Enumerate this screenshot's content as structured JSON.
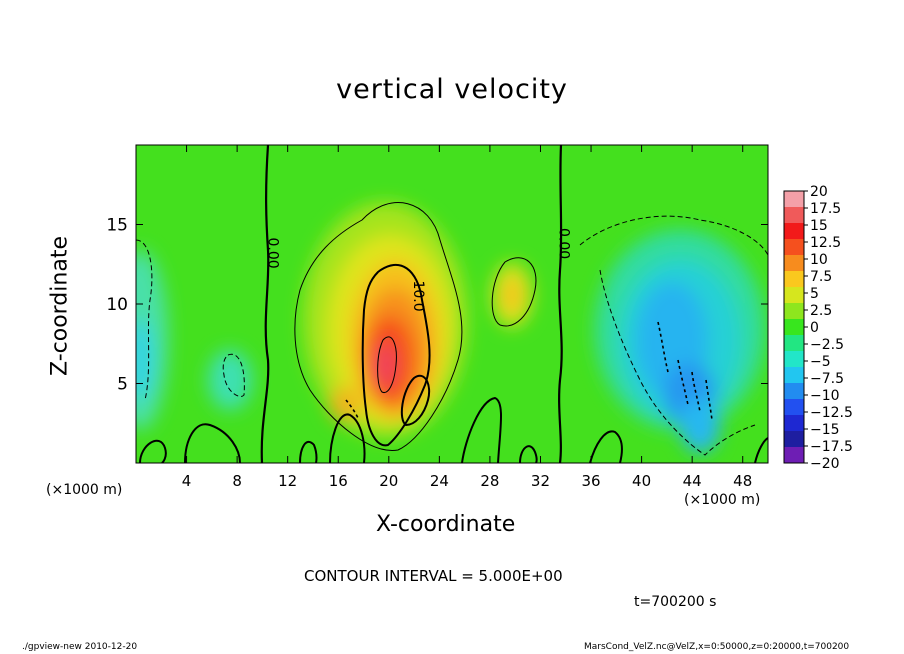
{
  "chart_data": {
    "type": "heatmap",
    "title": "vertical velocity",
    "xlabel": "X-coordinate",
    "ylabel": "Z-coordinate",
    "x_unit_left": "(×1000 m)",
    "x_unit_right": "(×1000 m)",
    "xlim": [
      0,
      50
    ],
    "ylim": [
      0,
      20
    ],
    "x_ticks": [
      4,
      8,
      12,
      16,
      20,
      24,
      28,
      32,
      36,
      40,
      44,
      48
    ],
    "y_ticks": [
      5,
      10,
      15
    ],
    "colorbar": {
      "labels": [
        "20",
        "17.5",
        "15",
        "12.5",
        "10",
        "7.5",
        "5",
        "2.5",
        "0",
        "-2.5",
        "-5",
        "-7.5",
        "-10",
        "-12.5",
        "-15",
        "-17.5",
        "-20"
      ],
      "range": [
        -20,
        20
      ],
      "colors": [
        "#f4a0a8",
        "#f05a5a",
        "#f21a1a",
        "#f5501e",
        "#f78c1e",
        "#fac81e",
        "#d6e61e",
        "#8ee61e",
        "#38e61e",
        "#22e682",
        "#22e6c8",
        "#22c6f0",
        "#228cf0",
        "#2250f0",
        "#1e28d2",
        "#1e1ea0",
        "#6e1eb4"
      ]
    },
    "contour_labels": [
      {
        "text": "0.00",
        "x": 10.5,
        "y": 13.2
      },
      {
        "text": "0.00",
        "x": 33.5,
        "y": 13.8
      },
      {
        "text": "10.0",
        "x": 22.0,
        "y": 10.5
      }
    ],
    "contour_interval_text": "CONTOUR INTERVAL = 5.000E+00",
    "time_text": "t=700200 s",
    "footer_left": "./gpview-new  2010-12-20",
    "footer_right": "MarsCond_VelZ.nc@VelZ,x=0:50000,z=0:20000,t=700200"
  }
}
